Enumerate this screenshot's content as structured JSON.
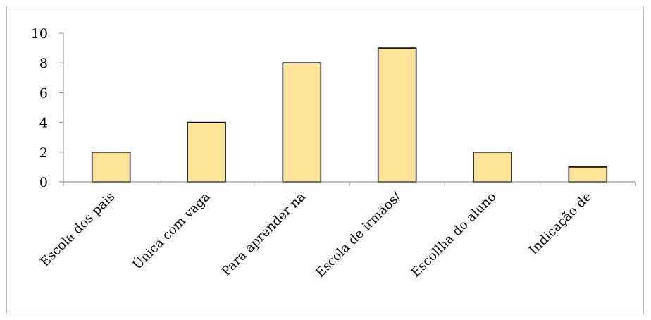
{
  "chart_data": {
    "type": "bar",
    "title": "",
    "xlabel": "",
    "ylabel": "",
    "categories": [
      "Escola dos pais",
      "Única com vaga",
      "Para aprender na",
      "Escola de irmãos/",
      "Escollha do aluno",
      "Indicação de"
    ],
    "values": [
      2,
      4,
      8,
      9,
      2,
      1
    ],
    "ylim": [
      0,
      10
    ],
    "yticks": [
      0,
      2,
      4,
      6,
      8,
      10
    ],
    "grid": false,
    "legend": "none",
    "bar_color": "#FFE399",
    "bar_edge_color": "#000000",
    "axis_color": "#808080"
  }
}
